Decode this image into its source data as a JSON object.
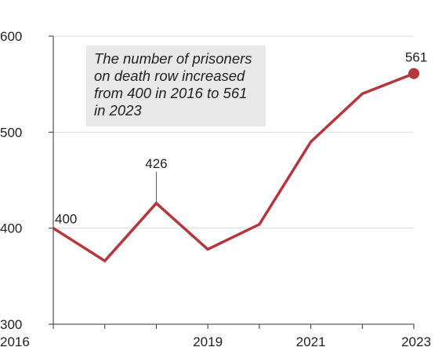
{
  "colors": {
    "line": "#b5363b",
    "grid": "#dddddd",
    "axis": "#333333",
    "annotation_bg": "#e8e8e8"
  },
  "annotation": {
    "text": "The number of prisoners on death row increased from 400 in 2016 to 561 in 2023"
  },
  "chart_data": {
    "type": "line",
    "x": [
      2016,
      2017,
      2018,
      2019,
      2020,
      2021,
      2022,
      2023
    ],
    "series": [
      {
        "values": [
          400,
          366,
          426,
          378,
          404,
          490,
          540,
          561
        ]
      }
    ],
    "xticks": [
      2016,
      2017,
      2018,
      2019,
      2020,
      2021,
      2022,
      2023
    ],
    "xtick_labels": [
      "2016",
      "",
      "",
      "2019",
      "",
      "2021",
      "",
      "2023"
    ],
    "yticks": [
      300,
      400,
      500,
      600
    ],
    "ytick_labels": [
      "300",
      "400",
      "500",
      "600"
    ],
    "ylim": [
      300,
      600
    ],
    "xlim": [
      2016,
      2023
    ],
    "grid": true,
    "data_labels": [
      {
        "x": 2016,
        "text": "400"
      },
      {
        "x": 2018,
        "text": "426"
      },
      {
        "x": 2023,
        "text": "561"
      }
    ],
    "end_marker": true
  }
}
